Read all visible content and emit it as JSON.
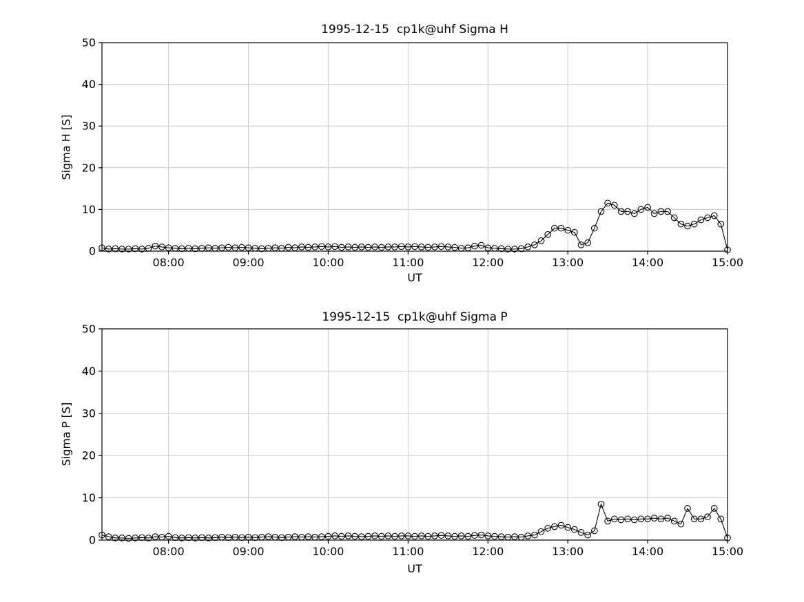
{
  "page": {
    "background": "#ffffff",
    "text_color": "#000000"
  },
  "chart_data": [
    {
      "type": "line",
      "title": "1995-12-15  cp1k@uhf Sigma H",
      "xlabel": "UT",
      "ylabel": "Sigma H [S]",
      "ylim": [
        0,
        50
      ],
      "yticks": [
        0,
        10,
        20,
        30,
        40,
        50
      ],
      "ytick_labels": [
        "0",
        "10",
        "20",
        "30",
        "40",
        "50"
      ],
      "xlim_hours": [
        7.1667,
        15.0
      ],
      "xticks_hours": [
        8,
        9,
        10,
        11,
        12,
        13,
        14,
        15
      ],
      "xtick_labels": [
        "08:00",
        "09:00",
        "10:00",
        "11:00",
        "12:00",
        "13:00",
        "14:00",
        "15:00"
      ],
      "grid": true,
      "grid_color": "#cccccc",
      "line_color": "#000000",
      "marker": "open-circle",
      "x_start_hours": 7.1667,
      "x_step_minutes": 5,
      "values": [
        0.8,
        0.5,
        0.6,
        0.5,
        0.5,
        0.6,
        0.5,
        0.7,
        1.2,
        1.0,
        0.8,
        0.7,
        0.6,
        0.7,
        0.6,
        0.7,
        0.8,
        0.7,
        0.8,
        0.9,
        0.8,
        0.9,
        0.8,
        0.7,
        0.6,
        0.7,
        0.8,
        0.7,
        0.9,
        0.8,
        1.0,
        0.9,
        1.0,
        1.1,
        1.0,
        1.1,
        0.9,
        1.0,
        0.9,
        1.0,
        0.9,
        1.0,
        0.9,
        1.0,
        1.0,
        1.1,
        1.0,
        1.1,
        1.0,
        0.9,
        1.0,
        1.1,
        1.0,
        0.9,
        0.7,
        0.8,
        1.2,
        1.4,
        0.8,
        0.7,
        0.6,
        0.5,
        0.5,
        0.6,
        1.0,
        1.5,
        2.5,
        4.0,
        5.5,
        5.5,
        5.0,
        4.5,
        1.5,
        2.0,
        5.5,
        9.5,
        11.5,
        11.0,
        9.5,
        9.5,
        9.0,
        10.0,
        10.5,
        9.0,
        9.5,
        9.5,
        8.0,
        6.5,
        6.0,
        6.5,
        7.5,
        8.0,
        8.5,
        6.5,
        0.3
      ]
    },
    {
      "type": "line",
      "title": "1995-12-15  cp1k@uhf Sigma P",
      "xlabel": "UT",
      "ylabel": "Sigma P [S]",
      "ylim": [
        0,
        50
      ],
      "yticks": [
        0,
        10,
        20,
        30,
        40,
        50
      ],
      "ytick_labels": [
        "0",
        "10",
        "20",
        "30",
        "40",
        "50"
      ],
      "xlim_hours": [
        7.1667,
        15.0
      ],
      "xticks_hours": [
        8,
        9,
        10,
        11,
        12,
        13,
        14,
        15
      ],
      "xtick_labels": [
        "08:00",
        "09:00",
        "10:00",
        "11:00",
        "12:00",
        "13:00",
        "14:00",
        "15:00"
      ],
      "grid": true,
      "grid_color": "#cccccc",
      "line_color": "#000000",
      "marker": "open-circle",
      "x_start_hours": 7.1667,
      "x_step_minutes": 5,
      "values": [
        1.2,
        0.8,
        0.5,
        0.5,
        0.4,
        0.5,
        0.6,
        0.5,
        0.8,
        0.7,
        0.9,
        0.6,
        0.5,
        0.6,
        0.5,
        0.6,
        0.5,
        0.6,
        0.7,
        0.6,
        0.7,
        0.6,
        0.7,
        0.6,
        0.7,
        0.8,
        0.7,
        0.6,
        0.7,
        0.8,
        0.7,
        0.8,
        0.7,
        0.8,
        0.9,
        1.0,
        0.9,
        1.0,
        0.9,
        0.8,
        0.9,
        1.0,
        0.9,
        1.0,
        0.9,
        1.0,
        1.0,
        0.9,
        1.0,
        0.9,
        1.0,
        1.1,
        1.0,
        0.9,
        1.0,
        0.9,
        1.1,
        1.2,
        1.0,
        0.9,
        0.8,
        0.7,
        0.8,
        0.7,
        1.0,
        1.2,
        2.0,
        2.8,
        3.2,
        3.5,
        3.0,
        2.5,
        1.8,
        1.2,
        2.2,
        8.5,
        4.5,
        5.0,
        4.8,
        5.0,
        4.8,
        5.0,
        5.0,
        5.2,
        5.0,
        5.2,
        4.5,
        3.8,
        7.5,
        5.0,
        5.0,
        5.5,
        7.5,
        5.0,
        0.5
      ]
    }
  ]
}
